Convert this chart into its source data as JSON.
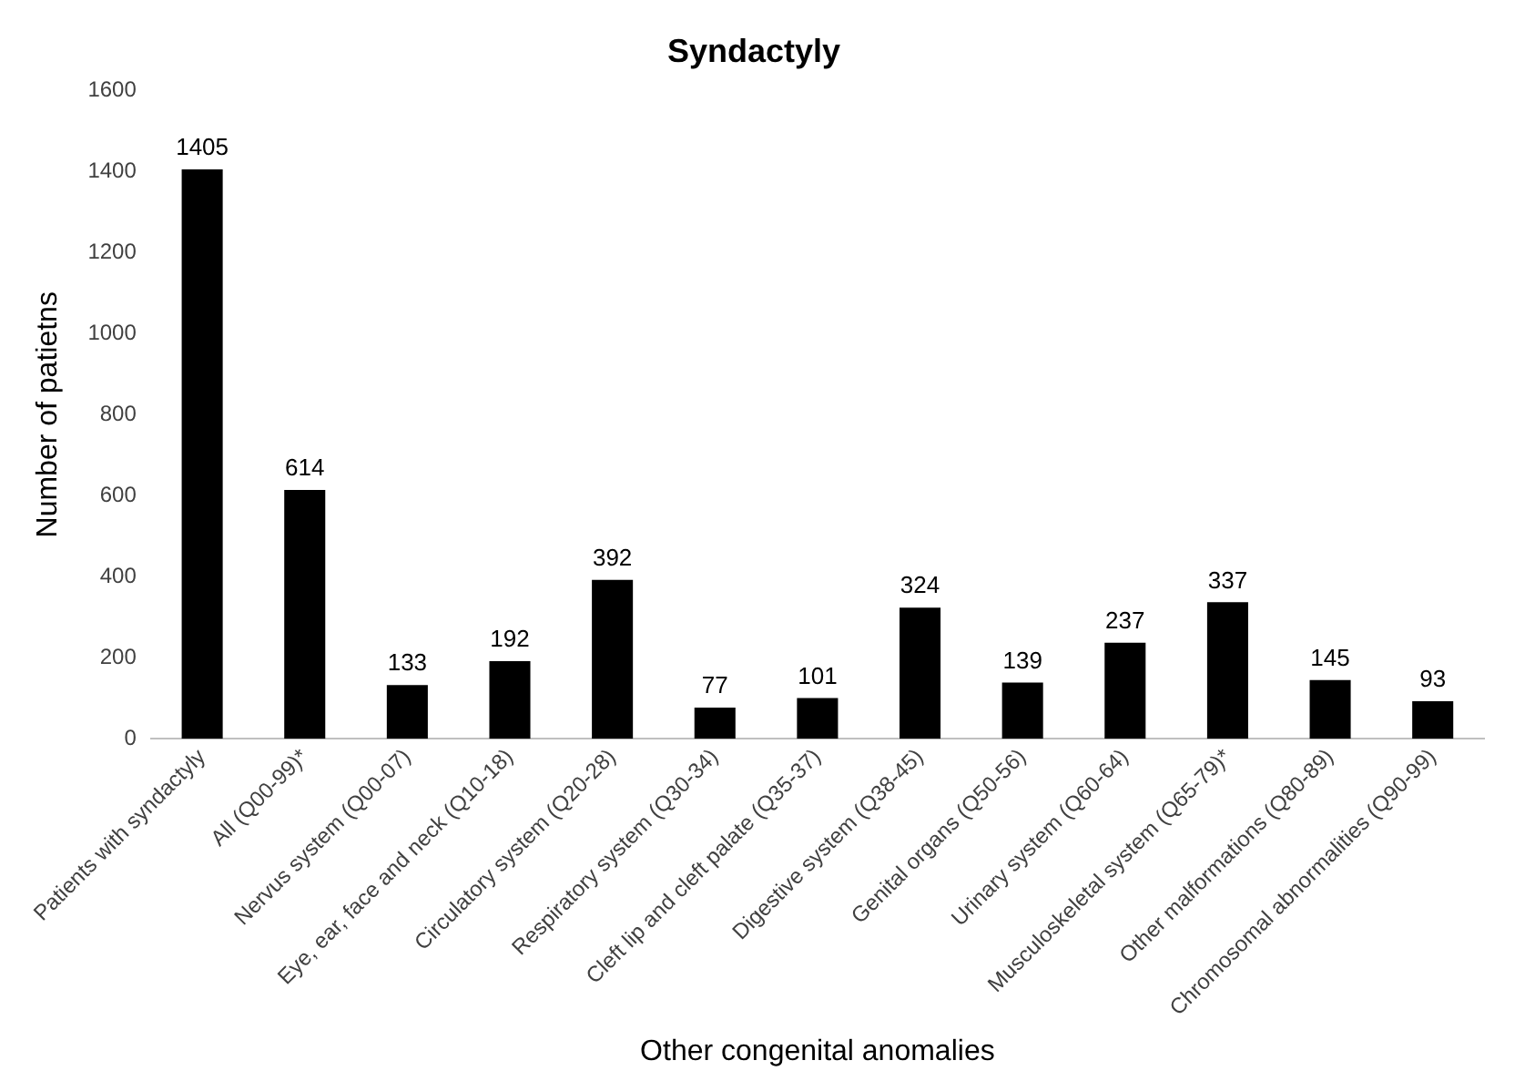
{
  "chart_data": {
    "type": "bar",
    "title": "Syndactyly",
    "xlabel": "Other congenital anomalies",
    "ylabel": "Number of patietns",
    "categories": [
      "Patients with syndactyly",
      "All (Q00-99)*",
      "Nervus system (Q00-07)",
      "Eye, ear, face and neck (Q10-18)",
      "Circulatory system (Q20-28)",
      "Respiratory system (Q30-34)",
      "Cleft lip and cleft palate (Q35-37)",
      "Digestive system (Q38-45)",
      "Genital organs (Q50-56)",
      "Urinary system (Q60-64)",
      "Musculoskeletal system (Q65-79)*",
      "Other malformations (Q80-89)",
      "Chromosomal abnormalities (Q90-99)"
    ],
    "values": [
      1405,
      614,
      133,
      192,
      392,
      77,
      101,
      324,
      139,
      237,
      337,
      145,
      93
    ],
    "color": "#000000",
    "ylim": [
      0,
      1600
    ],
    "yticks": [
      0,
      200,
      400,
      600,
      800,
      1000,
      1200,
      1400,
      1600
    ],
    "data_labels": true,
    "grid": false,
    "legend": false
  }
}
